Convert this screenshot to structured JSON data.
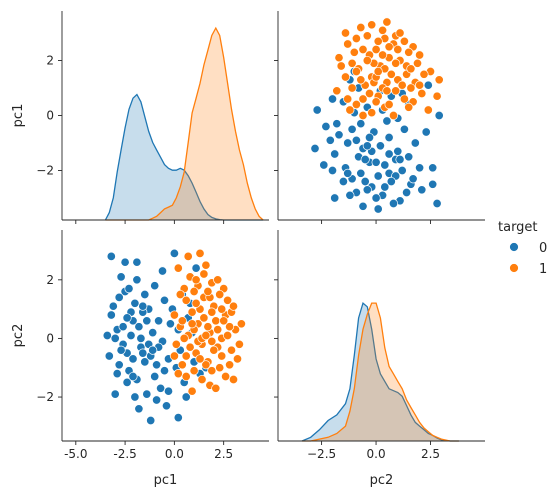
{
  "chart_data": {
    "type": "pairplot",
    "variables": [
      "pc1",
      "pc2"
    ],
    "hue_variable": "target",
    "legend": {
      "title": "target",
      "placement": "right",
      "entries": [
        {
          "label": "0",
          "color": "#1f77b4"
        },
        {
          "label": "1",
          "color": "#ff7f0e"
        }
      ]
    },
    "axes": {
      "pc1": {
        "range": [
          -5.7,
          4.8
        ],
        "ticks": [
          -5.0,
          -2.5,
          0.0,
          2.5
        ],
        "tick_labels": [
          "-5.0",
          "-2.5",
          "0.0",
          "2.5"
        ],
        "label": "pc1"
      },
      "pc1_y": {
        "range": [
          -3.8,
          3.8
        ],
        "ticks": [
          -2,
          0,
          2
        ],
        "tick_labels": [
          "−2",
          "0",
          "2"
        ],
        "label": "pc1"
      },
      "pc2": {
        "range": [
          -4.5,
          5.0
        ],
        "ticks": [
          -2.5,
          0.0,
          2.5
        ],
        "tick_labels": [
          "−2.5",
          "0.0",
          "2.5"
        ],
        "label": "pc2"
      },
      "pc2_y": {
        "range": [
          -3.5,
          3.7
        ],
        "ticks": [
          -2,
          0,
          2
        ],
        "tick_labels": [
          "−2",
          "0",
          "2"
        ],
        "label": "pc2"
      }
    },
    "kde_pc1": {
      "x": [
        -3.5,
        -3.3,
        -3.1,
        -2.9,
        -2.7,
        -2.5,
        -2.3,
        -2.1,
        -1.9,
        -1.7,
        -1.5,
        -1.3,
        -1.1,
        -0.9,
        -0.7,
        -0.5,
        -0.3,
        -0.1,
        0.1,
        0.3,
        0.5,
        0.7,
        0.9,
        1.1,
        1.3,
        1.5,
        1.7,
        1.9,
        2.1,
        2.3,
        2.5,
        2.7,
        2.9,
        3.1,
        3.3,
        3.5,
        3.7,
        3.9,
        4.1,
        4.3,
        4.5
      ],
      "series": [
        {
          "name": "0",
          "values": [
            0.0,
            0.02,
            0.06,
            0.13,
            0.19,
            0.25,
            0.3,
            0.33,
            0.34,
            0.32,
            0.28,
            0.24,
            0.21,
            0.19,
            0.17,
            0.15,
            0.14,
            0.135,
            0.135,
            0.14,
            0.135,
            0.12,
            0.1,
            0.075,
            0.05,
            0.03,
            0.015,
            0.007,
            0.003,
            0.001,
            0.0,
            0.0,
            0.0,
            0.0,
            0.0,
            0.0,
            0.0,
            0.0,
            0.0,
            0.0,
            0.0
          ]
        },
        {
          "name": "1",
          "values": [
            0.0,
            0.0,
            0.0,
            0.0,
            0.0,
            0.0,
            0.0,
            0.0,
            0.0,
            0.0,
            0.0,
            0.0,
            0.005,
            0.01,
            0.02,
            0.03,
            0.035,
            0.04,
            0.06,
            0.09,
            0.13,
            0.21,
            0.29,
            0.33,
            0.37,
            0.42,
            0.46,
            0.5,
            0.52,
            0.5,
            0.44,
            0.37,
            0.3,
            0.24,
            0.19,
            0.15,
            0.1,
            0.06,
            0.03,
            0.01,
            0.0
          ]
        }
      ]
    },
    "kde_pc2": {
      "x": [
        -3.4,
        -3.0,
        -2.6,
        -2.2,
        -1.8,
        -1.4,
        -1.2,
        -1.0,
        -0.8,
        -0.6,
        -0.4,
        -0.2,
        0.0,
        0.2,
        0.4,
        0.6,
        0.8,
        1.0,
        1.2,
        1.4,
        1.6,
        1.8,
        2.0,
        2.2,
        2.4,
        2.6,
        2.8,
        3.0,
        3.4,
        3.8
      ],
      "series": [
        {
          "name": "0",
          "values": [
            0.0,
            0.01,
            0.03,
            0.055,
            0.07,
            0.1,
            0.14,
            0.23,
            0.33,
            0.37,
            0.36,
            0.3,
            0.22,
            0.18,
            0.16,
            0.14,
            0.135,
            0.13,
            0.12,
            0.095,
            0.07,
            0.05,
            0.04,
            0.03,
            0.02,
            0.015,
            0.008,
            0.003,
            0.0,
            0.0
          ]
        },
        {
          "name": "1",
          "values": [
            0.0,
            0.0,
            0.005,
            0.01,
            0.02,
            0.04,
            0.08,
            0.14,
            0.23,
            0.3,
            0.34,
            0.37,
            0.37,
            0.33,
            0.25,
            0.2,
            0.18,
            0.16,
            0.14,
            0.11,
            0.09,
            0.07,
            0.05,
            0.035,
            0.025,
            0.015,
            0.01,
            0.005,
            0.0,
            0.0
          ]
        }
      ]
    },
    "points": {
      "class0": [
        [
          -2.9,
          0.3
        ],
        [
          -2.4,
          -0.5
        ],
        [
          -3.1,
          1.1
        ],
        [
          -2.8,
          -0.9
        ],
        [
          -3.4,
          0.1
        ],
        [
          -2.1,
          0.6
        ],
        [
          -1.9,
          -1.4
        ],
        [
          -2.5,
          1.6
        ],
        [
          -2.6,
          -0.2
        ],
        [
          -2.2,
          0.1
        ],
        [
          -1.8,
          0.4
        ],
        [
          -1.5,
          -0.8
        ],
        [
          -3.0,
          -1.9
        ],
        [
          -2.7,
          2.1
        ],
        [
          -1.3,
          1.0
        ],
        [
          -1.7,
          -0.3
        ],
        [
          -2.3,
          -1.1
        ],
        [
          -1.2,
          -0.6
        ],
        [
          -2.0,
          1.2
        ],
        [
          -3.2,
          0.8
        ],
        [
          -1.6,
          0.9
        ],
        [
          -2.4,
          -1.5
        ],
        [
          -1.1,
          0.2
        ],
        [
          -0.9,
          -0.9
        ],
        [
          -1.4,
          -1.9
        ],
        [
          -2.8,
          1.4
        ],
        [
          -2.1,
          -0.7
        ],
        [
          -0.8,
          0.6
        ],
        [
          -1.9,
          2.0
        ],
        [
          -2.6,
          0.4
        ],
        [
          -1.0,
          -1.3
        ],
        [
          -0.6,
          -0.1
        ],
        [
          -3.3,
          -0.6
        ],
        [
          -1.8,
          -2.4
        ],
        [
          -0.5,
          1.3
        ],
        [
          -2.2,
          0.9
        ],
        [
          -1.3,
          -0.2
        ],
        [
          -0.3,
          -0.7
        ],
        [
          -2.9,
          -1.2
        ],
        [
          -1.5,
          1.5
        ],
        [
          -0.7,
          -1.7
        ],
        [
          -0.2,
          0.5
        ],
        [
          0.1,
          -1.0
        ],
        [
          -1.7,
          0.0
        ],
        [
          -2.0,
          -2.0
        ],
        [
          -0.4,
          -2.3
        ],
        [
          0.2,
          0.3
        ],
        [
          -1.0,
          1.8
        ],
        [
          -3.0,
          0.0
        ],
        [
          -2.5,
          2.6
        ],
        [
          -1.2,
          -2.8
        ],
        [
          0.3,
          -0.4
        ],
        [
          -0.1,
          1.0
        ],
        [
          -1.6,
          -0.5
        ],
        [
          -2.3,
          1.7
        ],
        [
          0.5,
          -1.5
        ],
        [
          -0.8,
          -0.3
        ],
        [
          0.0,
          2.9
        ],
        [
          0.4,
          1.5
        ],
        [
          -0.6,
          2.3
        ],
        [
          1.0,
          -0.8
        ],
        [
          0.7,
          0.7
        ],
        [
          -1.4,
          0.6
        ],
        [
          -2.7,
          -0.4
        ],
        [
          -0.9,
          -2.1
        ],
        [
          0.6,
          -2.0
        ],
        [
          1.3,
          -1.2
        ],
        [
          -1.9,
          2.6
        ],
        [
          -2.4,
          0.7
        ],
        [
          0.9,
          0.2
        ],
        [
          -0.5,
          -1.1
        ],
        [
          -3.2,
          2.8
        ],
        [
          -2.1,
          -1.3
        ],
        [
          0.2,
          -2.7
        ],
        [
          1.6,
          -1.0
        ],
        [
          -1.1,
          -0.4
        ],
        [
          0.8,
          1.2
        ],
        [
          -0.3,
          -1.8
        ],
        [
          -1.6,
          1.1
        ],
        [
          1.1,
          2.4
        ]
      ],
      "class1": [
        [
          1.2,
          0.5
        ],
        [
          1.8,
          0.2
        ],
        [
          0.9,
          0.9
        ],
        [
          2.2,
          -0.3
        ],
        [
          1.5,
          1.4
        ],
        [
          0.6,
          -0.6
        ],
        [
          2.6,
          0.8
        ],
        [
          1.0,
          -1.1
        ],
        [
          1.9,
          1.9
        ],
        [
          2.4,
          0.0
        ],
        [
          0.3,
          0.4
        ],
        [
          1.7,
          -0.8
        ],
        [
          2.9,
          -0.4
        ],
        [
          1.3,
          1.0
        ],
        [
          0.8,
          2.1
        ],
        [
          2.1,
          0.6
        ],
        [
          1.4,
          -0.2
        ],
        [
          0.5,
          1.7
        ],
        [
          2.7,
          1.3
        ],
        [
          3.1,
          0.3
        ],
        [
          1.1,
          -0.5
        ],
        [
          1.6,
          2.5
        ],
        [
          0.0,
          0.8
        ],
        [
          2.3,
          -1.0
        ],
        [
          1.9,
          -0.1
        ],
        [
          0.7,
          0.1
        ],
        [
          2.8,
          -0.9
        ],
        [
          1.2,
          1.8
        ],
        [
          0.4,
          -0.9
        ],
        [
          3.3,
          -0.2
        ],
        [
          1.5,
          0.7
        ],
        [
          2.0,
          1.1
        ],
        [
          0.2,
          2.4
        ],
        [
          1.8,
          -1.6
        ],
        [
          2.5,
          1.7
        ],
        [
          1.0,
          0.3
        ],
        [
          0.6,
          1.3
        ],
        [
          2.2,
          2.0
        ],
        [
          1.4,
          -1.4
        ],
        [
          2.9,
          0.9
        ],
        [
          0.1,
          -0.2
        ],
        [
          1.7,
          0.4
        ],
        [
          3.0,
          -1.4
        ],
        [
          0.9,
          -1.8
        ],
        [
          1.3,
          2.9
        ],
        [
          2.4,
          -0.6
        ],
        [
          1.9,
          0.9
        ],
        [
          0.5,
          0.0
        ],
        [
          2.6,
          -1.3
        ],
        [
          3.4,
          0.5
        ],
        [
          1.1,
          1.2
        ],
        [
          0.3,
          1.5
        ],
        [
          2.0,
          -0.4
        ],
        [
          1.6,
          -0.9
        ],
        [
          2.8,
          0.4
        ],
        [
          0.8,
          -0.3
        ],
        [
          1.5,
          2.2
        ],
        [
          2.3,
          1.5
        ],
        [
          1.2,
          -0.1
        ],
        [
          0.7,
          2.8
        ],
        [
          3.2,
          -0.7
        ],
        [
          1.8,
          1.4
        ],
        [
          0.4,
          0.6
        ],
        [
          2.1,
          -1.7
        ],
        [
          1.0,
          1.6
        ],
        [
          2.7,
          0.1
        ],
        [
          1.4,
          0.0
        ],
        [
          0.0,
          -0.6
        ],
        [
          2.5,
          0.6
        ],
        [
          1.7,
          1.6
        ],
        [
          0.9,
          0.5
        ],
        [
          2.2,
          0.3
        ],
        [
          1.3,
          -0.7
        ],
        [
          3.0,
          1.1
        ],
        [
          0.6,
          -1.3
        ],
        [
          1.9,
          -1.1
        ],
        [
          1.1,
          2.0
        ],
        [
          2.4,
          1.0
        ],
        [
          0.2,
          -1.2
        ],
        [
          1.6,
          0.1
        ]
      ]
    }
  }
}
